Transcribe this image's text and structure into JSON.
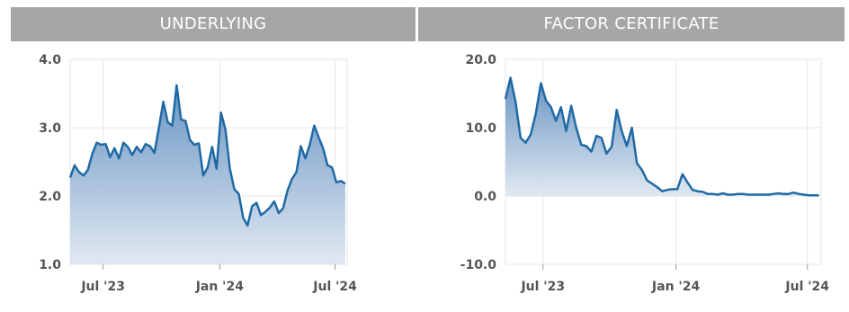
{
  "headers": {
    "left": "UNDERLYING",
    "right": "FACTOR CERTIFICATE"
  },
  "chart_data": [
    {
      "type": "area",
      "title": "UNDERLYING",
      "ylim": [
        1.0,
        4.0
      ],
      "yticks": [
        "4.0",
        "3.0",
        "2.0",
        "1.0"
      ],
      "ytick_values": [
        4.0,
        3.0,
        2.0,
        1.0
      ],
      "xticks": [
        "Jul '23",
        "Jan '24",
        "Jul '24"
      ],
      "xtick_values": [
        "2023-07-01",
        "2024-01-01",
        "2024-07-01"
      ],
      "xlim": [
        "2023-05-10",
        "2024-07-20"
      ],
      "color": "#1f6aa5",
      "grid": true,
      "series": [
        {
          "x": [
            "2023-05-10",
            "2023-05-17",
            "2023-05-24",
            "2023-05-31",
            "2023-06-07",
            "2023-06-14",
            "2023-06-21",
            "2023-06-28",
            "2023-07-05",
            "2023-07-12",
            "2023-07-19",
            "2023-07-26",
            "2023-08-02",
            "2023-08-09",
            "2023-08-16",
            "2023-08-23",
            "2023-08-30",
            "2023-09-06",
            "2023-09-13",
            "2023-09-20",
            "2023-09-27",
            "2023-10-04",
            "2023-10-11",
            "2023-10-18",
            "2023-10-25",
            "2023-11-01",
            "2023-11-08",
            "2023-11-15",
            "2023-11-22",
            "2023-11-29",
            "2023-12-06",
            "2023-12-13",
            "2023-12-20",
            "2023-12-27",
            "2024-01-03",
            "2024-01-10",
            "2024-01-17",
            "2024-01-24",
            "2024-01-31",
            "2024-02-07",
            "2024-02-14",
            "2024-02-21",
            "2024-02-28",
            "2024-03-06",
            "2024-03-13",
            "2024-03-20",
            "2024-03-27",
            "2024-04-03",
            "2024-04-10",
            "2024-04-17",
            "2024-04-24",
            "2024-05-01",
            "2024-05-08",
            "2024-05-15",
            "2024-05-22",
            "2024-05-29",
            "2024-06-05",
            "2024-06-12",
            "2024-06-19",
            "2024-06-26",
            "2024-07-03",
            "2024-07-10",
            "2024-07-17"
          ],
          "y": [
            2.27,
            2.45,
            2.35,
            2.3,
            2.38,
            2.62,
            2.78,
            2.75,
            2.76,
            2.57,
            2.7,
            2.55,
            2.78,
            2.72,
            2.6,
            2.72,
            2.64,
            2.76,
            2.73,
            2.63,
            3.0,
            3.38,
            3.08,
            3.03,
            3.62,
            3.12,
            3.1,
            2.82,
            2.75,
            2.77,
            2.3,
            2.42,
            2.72,
            2.4,
            3.22,
            2.97,
            2.4,
            2.1,
            2.03,
            1.68,
            1.57,
            1.85,
            1.9,
            1.72,
            1.77,
            1.83,
            1.92,
            1.75,
            1.82,
            2.08,
            2.25,
            2.35,
            2.73,
            2.55,
            2.75,
            3.03,
            2.86,
            2.7,
            2.45,
            2.42,
            2.2,
            2.22,
            2.18
          ]
        }
      ]
    },
    {
      "type": "area",
      "title": "FACTOR CERTIFICATE",
      "ylim": [
        -10.0,
        20.0
      ],
      "yticks": [
        "20.0",
        "10.0",
        "0.0",
        "-10.0"
      ],
      "ytick_values": [
        20.0,
        10.0,
        0.0,
        -10.0
      ],
      "xticks": [
        "Jul '23",
        "Jan '24",
        "Jul '24"
      ],
      "xtick_values": [
        "2023-07-01",
        "2024-01-01",
        "2024-07-01"
      ],
      "xlim": [
        "2023-05-10",
        "2024-07-20"
      ],
      "color": "#1f6aa5",
      "grid": true,
      "series": [
        {
          "x": [
            "2023-05-10",
            "2023-05-17",
            "2023-05-24",
            "2023-05-31",
            "2023-06-07",
            "2023-06-14",
            "2023-06-21",
            "2023-06-28",
            "2023-07-05",
            "2023-07-12",
            "2023-07-19",
            "2023-07-26",
            "2023-08-02",
            "2023-08-09",
            "2023-08-16",
            "2023-08-23",
            "2023-08-30",
            "2023-09-06",
            "2023-09-13",
            "2023-09-20",
            "2023-09-27",
            "2023-10-04",
            "2023-10-11",
            "2023-10-18",
            "2023-10-25",
            "2023-11-01",
            "2023-11-08",
            "2023-11-15",
            "2023-11-22",
            "2023-11-29",
            "2023-12-06",
            "2023-12-13",
            "2023-12-20",
            "2023-12-27",
            "2024-01-03",
            "2024-01-10",
            "2024-01-17",
            "2024-01-24",
            "2024-01-31",
            "2024-02-07",
            "2024-02-14",
            "2024-02-21",
            "2024-02-28",
            "2024-03-06",
            "2024-03-13",
            "2024-03-20",
            "2024-03-27",
            "2024-04-03",
            "2024-04-10",
            "2024-04-17",
            "2024-04-24",
            "2024-05-01",
            "2024-05-08",
            "2024-05-15",
            "2024-05-22",
            "2024-05-29",
            "2024-06-05",
            "2024-06-12",
            "2024-06-19",
            "2024-06-26",
            "2024-07-03",
            "2024-07-10",
            "2024-07-17"
          ],
          "y": [
            14.2,
            17.3,
            13.8,
            8.5,
            7.8,
            9.0,
            12.0,
            16.5,
            14.0,
            13.0,
            11.0,
            13.0,
            9.5,
            13.2,
            10.0,
            7.5,
            7.3,
            6.5,
            8.8,
            8.5,
            6.2,
            7.2,
            12.6,
            9.5,
            7.3,
            10.0,
            4.8,
            3.8,
            2.3,
            1.8,
            1.3,
            0.7,
            0.9,
            1.0,
            1.0,
            3.2,
            2.0,
            0.9,
            0.7,
            0.6,
            0.3,
            0.3,
            0.2,
            0.4,
            0.2,
            0.2,
            0.3,
            0.3,
            0.2,
            0.2,
            0.2,
            0.2,
            0.2,
            0.3,
            0.4,
            0.3,
            0.3,
            0.5,
            0.3,
            0.2,
            0.1,
            0.1,
            0.1
          ]
        }
      ]
    }
  ]
}
